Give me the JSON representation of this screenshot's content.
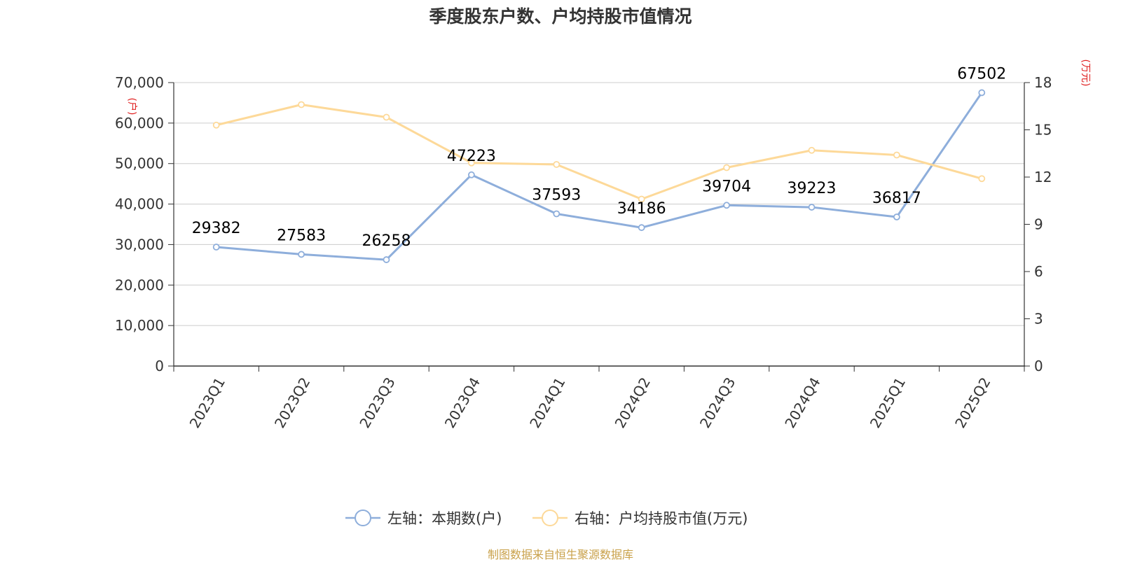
{
  "title": "季度股东户数、户均持股市值情况",
  "source": "制图数据来自恒生聚源数据库",
  "colors": {
    "left_series": "#8eaedb",
    "right_series": "#fdd999",
    "unit_label": "#e02020",
    "source": "#c9a14a",
    "axis": "#333333",
    "grid": "#cccccc"
  },
  "chart_data": {
    "type": "line",
    "title": "季度股东户数、户均持股市值情况",
    "categories": [
      "2023Q1",
      "2023Q2",
      "2023Q3",
      "2023Q4",
      "2024Q1",
      "2024Q2",
      "2024Q3",
      "2024Q4",
      "2025Q1",
      "2025Q2"
    ],
    "series": [
      {
        "name": "左轴：本期数(户)",
        "axis": "left",
        "values": [
          29382,
          27583,
          26258,
          47223,
          37593,
          34186,
          39704,
          39223,
          36817,
          67502
        ],
        "data_labels": [
          "29382",
          "27583",
          "26258",
          "47223",
          "37593",
          "34186",
          "39704",
          "39223",
          "36817",
          "67502"
        ]
      },
      {
        "name": "右轴：户均持股市值(万元)",
        "axis": "right",
        "values": [
          15.3,
          16.6,
          15.8,
          12.9,
          12.8,
          10.6,
          12.6,
          13.7,
          13.4,
          11.9
        ]
      }
    ],
    "left_axis": {
      "unit": "(户)",
      "ylim": [
        0,
        70000
      ],
      "ticks": [
        0,
        10000,
        20000,
        30000,
        40000,
        50000,
        60000,
        70000
      ],
      "tick_labels": [
        "0",
        "10,000",
        "20,000",
        "30,000",
        "40,000",
        "50,000",
        "60,000",
        "70,000"
      ]
    },
    "right_axis": {
      "unit": "(万元)",
      "ylim": [
        0,
        18
      ],
      "ticks": [
        0,
        3,
        6,
        9,
        12,
        15,
        18
      ],
      "tick_labels": [
        "0",
        "3",
        "6",
        "9",
        "12",
        "15",
        "18"
      ]
    },
    "grid": true,
    "legend_position": "bottom-center"
  }
}
